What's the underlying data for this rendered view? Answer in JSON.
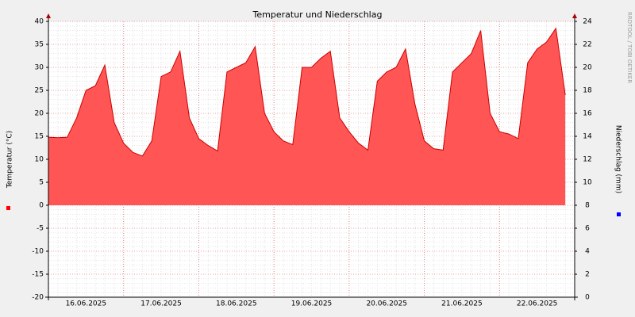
{
  "chart_data": {
    "type": "area",
    "title": "Temperatur und Niederschlag",
    "y_label": "Temperatur (°C)",
    "y2_label": "Niederschlag (mm)",
    "watermark": "RRDTOOL / TOBI OETIKER",
    "categories": [
      null,
      null,
      null,
      null,
      "16.06.2025",
      null,
      null,
      null,
      null,
      null,
      null,
      null,
      "17.06.2025",
      null,
      null,
      null,
      null,
      null,
      null,
      null,
      "18.06.2025",
      null,
      null,
      null,
      null,
      null,
      null,
      null,
      "19.06.2025",
      null,
      null,
      null,
      null,
      null,
      null,
      null,
      "20.06.2025",
      null,
      null,
      null,
      null,
      null,
      null,
      null,
      "21.06.2025",
      null,
      null,
      null,
      null,
      null,
      null,
      null,
      "22.06.2025",
      null,
      null,
      null
    ],
    "series": [
      {
        "name": "Temperatur",
        "color": "#ff5555",
        "line_color": "#cc0000",
        "values": [
          14.8,
          14.7,
          14.8,
          19,
          25,
          26,
          30.5,
          18,
          13.5,
          11.5,
          10.7,
          14,
          28,
          29,
          33.5,
          19,
          14.5,
          13,
          11.8,
          29,
          30,
          31,
          34.5,
          20,
          16,
          14,
          13.2,
          30,
          30,
          32,
          33.5,
          19,
          16,
          13.5,
          12,
          27,
          29,
          30,
          34,
          22,
          14,
          12.3,
          12,
          29,
          31,
          33,
          38,
          20,
          16,
          15.5,
          14.5,
          31,
          34,
          35.5,
          38.5,
          24
        ]
      }
    ],
    "ylim": [
      -20,
      40
    ],
    "yticks": [
      -20,
      -15,
      -10,
      -5,
      0,
      5,
      10,
      15,
      20,
      25,
      30,
      35,
      40
    ],
    "y2lim": [
      0,
      24
    ],
    "y2ticks": [
      0,
      2,
      4,
      6,
      8,
      10,
      12,
      14,
      16,
      18,
      20,
      22,
      24
    ],
    "grid": true
  }
}
